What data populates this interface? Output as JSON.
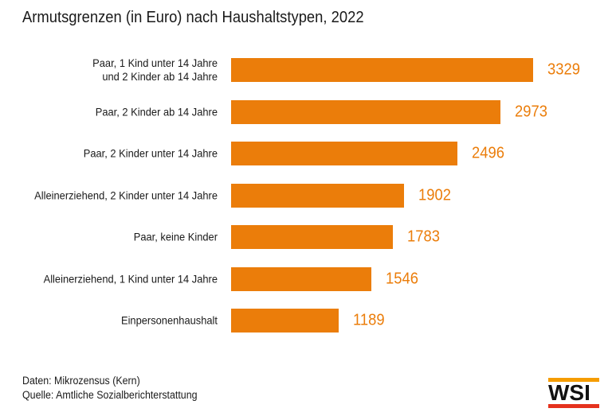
{
  "title": "Armutsgrenzen (in Euro) nach Haushaltstypen, 2022",
  "chart_data": {
    "type": "bar",
    "orientation": "horizontal",
    "title": "Armutsgrenzen (in Euro) nach Haushaltstypen, 2022",
    "categories": [
      "Paar, 1 Kind unter 14 Jahre\nund 2 Kinder ab 14 Jahre",
      "Paar, 2 Kinder ab 14 Jahre",
      "Paar, 2 Kinder unter 14 Jahre",
      "Alleinerziehend, 2 Kinder unter 14 Jahre",
      "Paar, keine Kinder",
      "Alleinerziehend, 1 Kind unter 14 Jahre",
      "Einpersonenhaushalt"
    ],
    "values": [
      3329,
      2973,
      2496,
      1902,
      1783,
      1546,
      1189
    ],
    "xlabel": "",
    "ylabel": "",
    "xlim": [
      0,
      3500
    ],
    "grid": false,
    "legend": false,
    "value_labels_shown": true,
    "bar_color": "#eb7d0a",
    "value_label_color": "#eb7d0a"
  },
  "footer": {
    "line1": "Daten: Mikrozensus (Kern)",
    "line2": "Quelle: Amtliche Sozialberichterstattung"
  },
  "logo": {
    "text": "WSI",
    "top_bar_color": "#f59c00",
    "bottom_bar_color": "#e5321e"
  }
}
